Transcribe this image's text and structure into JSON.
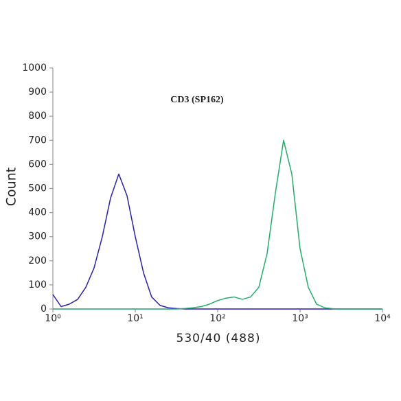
{
  "chart_data": {
    "type": "line",
    "title": "CD3 (SP162)",
    "x_label": "530/40 (488)",
    "y_label": "Count",
    "log_x": true,
    "xlim": [
      1,
      10000
    ],
    "xticks": [
      {
        "value": 1,
        "label": "10⁰"
      },
      {
        "value": 10,
        "label": "10¹"
      },
      {
        "value": 100,
        "label": "10²"
      },
      {
        "value": 1000,
        "label": "10³"
      },
      {
        "value": 10000,
        "label": "10⁴"
      }
    ],
    "ylim": [
      0,
      1000
    ],
    "yticks": [
      0,
      100,
      200,
      300,
      400,
      500,
      600,
      700,
      800,
      900,
      1000
    ],
    "x": [
      1,
      1.26,
      1.58,
      2,
      2.51,
      3.16,
      3.98,
      5.01,
      6.31,
      7.94,
      10,
      12.6,
      15.8,
      20,
      25.1,
      31.6,
      39.8,
      50.1,
      63.1,
      79.4,
      100,
      126,
      158,
      200,
      251,
      316,
      398,
      501,
      631,
      794,
      1000,
      1259,
      1585,
      1995,
      2512,
      3162,
      3981,
      5012,
      6310,
      7943,
      10000
    ],
    "series": [
      {
        "color": "#2a1fb5",
        "values": [
          60,
          10,
          20,
          40,
          90,
          170,
          300,
          460,
          560,
          470,
          300,
          150,
          50,
          15,
          5,
          2,
          0,
          0,
          0,
          0,
          0,
          0,
          0,
          0,
          0,
          0,
          0,
          0,
          0,
          0,
          0,
          0,
          0,
          0,
          0,
          0,
          0,
          0,
          0,
          0,
          0
        ]
      },
      {
        "color": "#1fae6a",
        "values": [
          0,
          0,
          0,
          0,
          0,
          0,
          0,
          0,
          0,
          0,
          0,
          0,
          0,
          0,
          0,
          0,
          2,
          5,
          10,
          20,
          35,
          45,
          50,
          40,
          50,
          90,
          230,
          480,
          700,
          560,
          250,
          90,
          20,
          5,
          1,
          0,
          0,
          0,
          0,
          0,
          0
        ]
      }
    ]
  }
}
